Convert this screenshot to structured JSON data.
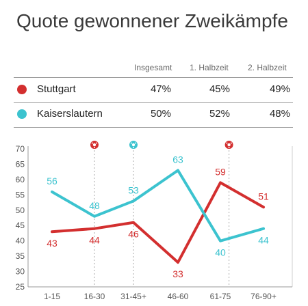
{
  "title": "Quote gewonnener Zweikämpfe",
  "table": {
    "columns": [
      "Insgesamt",
      "1. Halbzeit",
      "2. Halbzeit"
    ],
    "rows": [
      {
        "team": "Stuttgart",
        "color": "#d32f2f",
        "values": [
          "47%",
          "45%",
          "49%"
        ]
      },
      {
        "team": "Kaiserslautern",
        "color": "#3cc3cf",
        "values": [
          "50%",
          "52%",
          "48%"
        ]
      }
    ]
  },
  "chart_data": {
    "type": "line",
    "categories": [
      "1-15",
      "16-30",
      "31-45+",
      "46-60",
      "61-75",
      "76-90+"
    ],
    "series": [
      {
        "name": "Stuttgart",
        "color": "#d32f2f",
        "values": [
          43,
          44,
          46,
          33,
          59,
          51
        ]
      },
      {
        "name": "Kaiserslautern",
        "color": "#3cc3cf",
        "values": [
          56,
          48,
          53,
          63,
          40,
          44
        ]
      }
    ],
    "ylim": [
      25,
      70
    ],
    "yticks": [
      25,
      30,
      35,
      40,
      45,
      50,
      55,
      60,
      65,
      70
    ],
    "annotations": [
      {
        "type": "goal",
        "team": "Stuttgart",
        "color": "#d32f2f",
        "x": 1.0
      },
      {
        "type": "goal",
        "team": "Kaiserslautern",
        "color": "#3cc3cf",
        "x": 2.0
      },
      {
        "type": "goal",
        "team": "Stuttgart",
        "color": "#d32f2f",
        "x": 4.2
      }
    ],
    "grid": false
  }
}
